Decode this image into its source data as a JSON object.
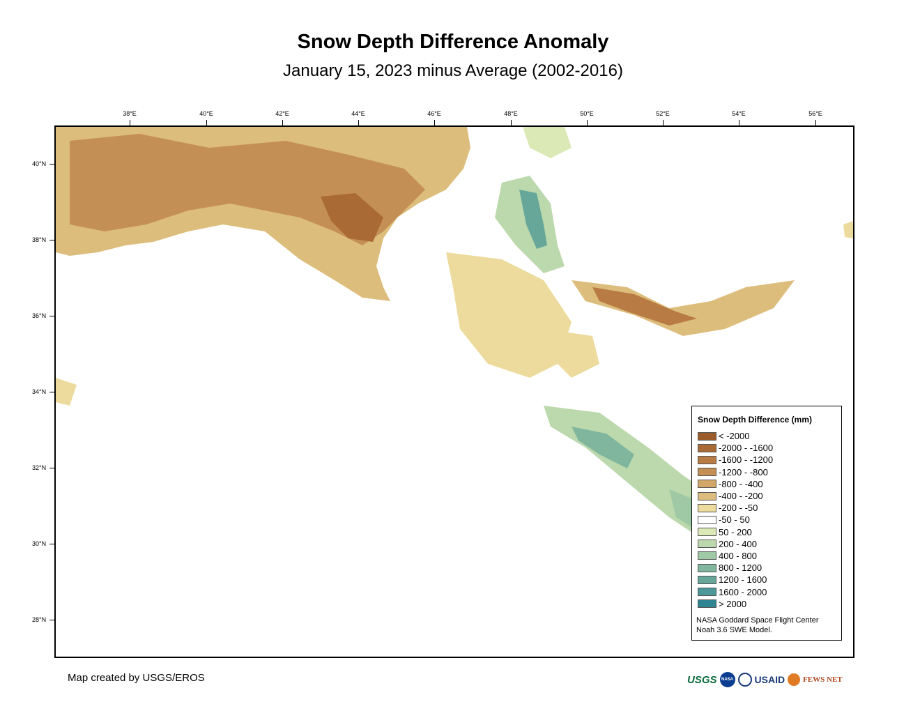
{
  "title": "Snow Depth Difference Anomaly",
  "subtitle": "January 15, 2023 minus Average (2002-2016)",
  "longitude_ticks": [
    "38°E",
    "40°E",
    "42°E",
    "44°E",
    "46°E",
    "48°E",
    "50°E",
    "52°E",
    "54°E",
    "56°E"
  ],
  "latitude_ticks": [
    "40°N",
    "38°N",
    "36°N",
    "34°N",
    "32°N",
    "30°N",
    "28°N"
  ],
  "legend": {
    "title": "Snow Depth Difference (mm)",
    "items": [
      {
        "label": "< -2000",
        "color": "#9c5b2a"
      },
      {
        "label": "-2000 - -1600",
        "color": "#a96a35"
      },
      {
        "label": "-1600 - -1200",
        "color": "#b77b43"
      },
      {
        "label": "-1200 - -800",
        "color": "#c48f55"
      },
      {
        "label": "-800 - -400",
        "color": "#d2a668"
      },
      {
        "label": "-400 - -200",
        "color": "#ddbd7c"
      },
      {
        "label": "-200 - -50",
        "color": "#ecdb9d"
      },
      {
        "label": "-50 - 50",
        "color": "#ffffff"
      },
      {
        "label": "50 - 200",
        "color": "#dbe9b6"
      },
      {
        "label": "200 - 400",
        "color": "#bcd9ad"
      },
      {
        "label": "400 - 800",
        "color": "#9fc8a4"
      },
      {
        "label": "800 - 1200",
        "color": "#80b69d"
      },
      {
        "label": "1200 - 1600",
        "color": "#66a79a"
      },
      {
        "label": "1600 - 2000",
        "color": "#4c9899"
      },
      {
        "label": "> 2000",
        "color": "#2f8592"
      }
    ],
    "credit_line1": "NASA Goddard Space Flight Center",
    "credit_line2": "Noah 3.6 SWE Model."
  },
  "map_credit": "Map created by USGS/EROS",
  "logos": {
    "usgs": "USGS",
    "nasa": "NASA",
    "usaid": "USAID",
    "fews": "FEWS NET"
  }
}
